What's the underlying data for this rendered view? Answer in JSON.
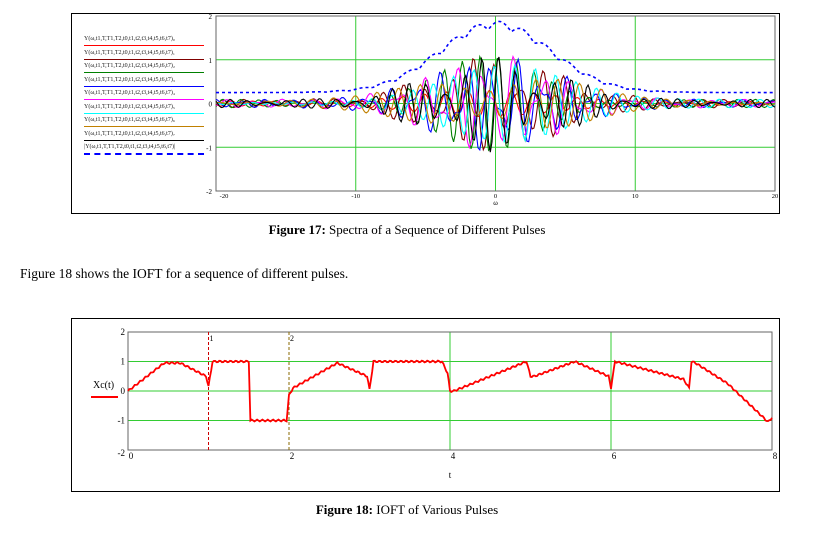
{
  "figure17": {
    "caption_label": "Figure 17:",
    "caption_text": "Spectra of a Sequence of Different Pulses",
    "chart_data": {
      "type": "line",
      "xlabel": "ω",
      "xlim": [
        -20,
        20
      ],
      "ylim": [
        -2,
        2
      ],
      "x_tick_labels": [
        "-20",
        "-10",
        "0",
        "10",
        "20"
      ],
      "y_tick_labels": [
        "2",
        "1",
        "0",
        "-1",
        "-2"
      ],
      "grid": true,
      "legend_placement": "left",
      "series": [
        {
          "name": "Y(ω,t1,T,T1,T2,t0,t1,t2,t3,t4,t5,t6,t7)₀",
          "color": "#ff0000",
          "style": "solid"
        },
        {
          "name": "Y(ω,t1,T,T1,T2,t0,t1,t2,t3,t4,t5,t6,t7)₁",
          "color": "#800000",
          "style": "solid"
        },
        {
          "name": "Y(ω,t1,T,T1,T2,t0,t1,t2,t3,t4,t5,t6,t7)₂",
          "color": "#008000",
          "style": "solid"
        },
        {
          "name": "Y(ω,t1,T,T1,T2,t0,t1,t2,t3,t4,t5,t6,t7)₃",
          "color": "#0000ff",
          "style": "solid"
        },
        {
          "name": "Y(ω,t1,T,T1,T2,t0,t1,t2,t3,t4,t5,t6,t7)₄",
          "color": "#ff00ff",
          "style": "solid"
        },
        {
          "name": "Y(ω,t1,T,T1,T2,t0,t1,t2,t3,t4,t5,t6,t7)₅",
          "color": "#00ffff",
          "style": "solid"
        },
        {
          "name": "Y(ω,t1,T,T1,T2,t0,t1,t2,t3,t4,t5,t6,t7)₆",
          "color": "#c08000",
          "style": "solid"
        },
        {
          "name": "Y(ω,t1,T,T1,T2,t0,t1,t2,t3,t4,t5,t6,t7)₇",
          "color": "#000000",
          "style": "solid"
        },
        {
          "name": "|Y(ω,t1,T,T1,T2,t0,t1,t2,t3,t4,t5,t6,t7)|",
          "color": "#0000ff",
          "style": "dashed"
        }
      ]
    }
  },
  "body_text": "Figure 18 shows the IOFT for a sequence of different pulses.",
  "figure18": {
    "caption_label": "Figure 18:",
    "caption_text": "IOFT of Various Pulses",
    "chart_data": {
      "type": "line",
      "ylabel": "Xc(t)",
      "xlabel": "t",
      "xlim": [
        0,
        8
      ],
      "ylim": [
        -2,
        2
      ],
      "x_tick_labels": [
        "0",
        "2",
        "4",
        "6",
        "8"
      ],
      "y_tick_labels": [
        "2",
        "1",
        "0",
        "-1",
        "-2"
      ],
      "grid": true,
      "markers": [
        {
          "x": 1,
          "label": "1"
        },
        {
          "x": 2,
          "label": "2"
        }
      ],
      "series": [
        {
          "name": "Xc(t)",
          "color": "#ff0000",
          "x": [
            0,
            0.45,
            0.65,
            0.97,
            1.0,
            1.05,
            1.5,
            1.52,
            1.97,
            2.0,
            2.05,
            2.6,
            2.97,
            3.0,
            3.05,
            3.9,
            3.97,
            4.0,
            4.05,
            4.95,
            5.0,
            5.05,
            5.55,
            5.97,
            6.0,
            6.05,
            6.9,
            6.97,
            7.0,
            7.05,
            7.45,
            7.95,
            8.0
          ],
          "y": [
            0,
            0.95,
            0.95,
            0.5,
            0.15,
            1.0,
            1.0,
            -1.0,
            -1.0,
            -0.15,
            0.1,
            0.95,
            0.5,
            0.05,
            1.0,
            1.0,
            0.6,
            0.0,
            0.0,
            1.0,
            0.5,
            0.5,
            1.0,
            0.5,
            0.1,
            1.0,
            0.4,
            0.1,
            1.0,
            0.95,
            0.25,
            -1.05,
            -0.9
          ]
        }
      ]
    }
  }
}
